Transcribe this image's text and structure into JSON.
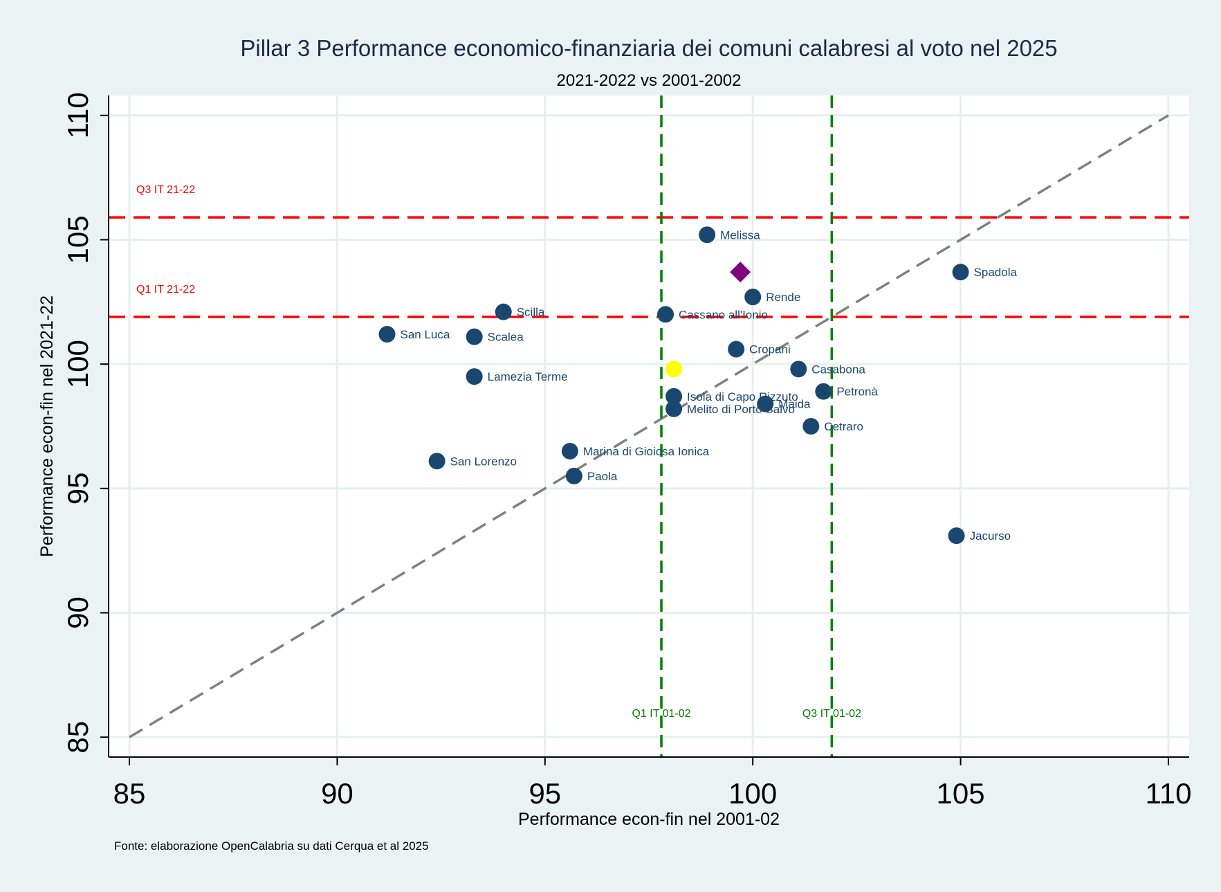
{
  "chart_data": {
    "type": "scatter",
    "title": "Pillar 3 Performance economico-finanziaria dei comuni calabresi al voto nel 2025",
    "subtitle": "2021-2022 vs 2001-2002",
    "xlabel": "Performance econ-fin nel 2001-02",
    "ylabel": "Performance econ-fin nel 2021-22",
    "xlim": [
      84.5,
      110.5
    ],
    "ylim": [
      84.2,
      110.8
    ],
    "xticks": [
      85,
      90,
      95,
      100,
      105,
      110
    ],
    "yticks": [
      85,
      90,
      95,
      100,
      105,
      110
    ],
    "grid": true,
    "note": "Fonte: elaborazione OpenCalabria su dati Cerqua et al 2025",
    "colors": {
      "background": "#eaf2f3",
      "plot_background": "#ffffff",
      "grid": "#e6eff0",
      "point": "#1a476f",
      "highlight_point": "#ffff00",
      "average_marker": "#800080",
      "horizontal_reference": "#ff0000",
      "vertical_reference": "#008000",
      "diagonal": "#808080",
      "title": "#1a2a4a"
    },
    "points": [
      {
        "label": "Melissa",
        "x": 98.9,
        "y": 105.2
      },
      {
        "label": "Spadola",
        "x": 105.0,
        "y": 103.7
      },
      {
        "label": "Rende",
        "x": 100.0,
        "y": 102.7
      },
      {
        "label": "Scilla",
        "x": 94.0,
        "y": 102.1
      },
      {
        "label": "Cassano all'Ionio",
        "x": 97.9,
        "y": 102.0
      },
      {
        "label": "San Luca",
        "x": 91.2,
        "y": 101.2
      },
      {
        "label": "Scalea",
        "x": 93.3,
        "y": 101.1
      },
      {
        "label": "Cropani",
        "x": 99.6,
        "y": 100.6
      },
      {
        "label": "Casabona",
        "x": 101.1,
        "y": 99.8
      },
      {
        "label": "Lamezia Terme",
        "x": 93.3,
        "y": 99.5
      },
      {
        "label": "Petronà",
        "x": 101.7,
        "y": 98.9
      },
      {
        "label": "Isola di Capo Rizzuto",
        "x": 98.1,
        "y": 98.7
      },
      {
        "label": "Maida",
        "x": 100.3,
        "y": 98.4
      },
      {
        "label": "Melito di Porto Salvo",
        "x": 98.1,
        "y": 98.2
      },
      {
        "label": "Cetraro",
        "x": 101.4,
        "y": 97.5
      },
      {
        "label": "Marina di Gioiosa Ionica",
        "x": 95.6,
        "y": 96.5
      },
      {
        "label": "San Lorenzo",
        "x": 92.4,
        "y": 96.1
      },
      {
        "label": "Paola",
        "x": 95.7,
        "y": 95.5
      },
      {
        "label": "Jacurso",
        "x": 104.9,
        "y": 93.1
      }
    ],
    "highlight_point": {
      "x": 98.1,
      "y": 99.8
    },
    "average_marker": {
      "x": 99.7,
      "y": 103.7
    },
    "reference_lines": {
      "horizontal": [
        {
          "label": "Q3 IT 21-22",
          "y": 105.9
        },
        {
          "label": "Q1 IT 21-22",
          "y": 101.9
        }
      ],
      "vertical": [
        {
          "label": "Q1 IT 01-02",
          "x": 97.8
        },
        {
          "label": "Q3 IT 01-02",
          "x": 101.9
        }
      ],
      "diagonal": {
        "from": [
          85,
          85
        ],
        "to": [
          110,
          110
        ]
      }
    }
  }
}
